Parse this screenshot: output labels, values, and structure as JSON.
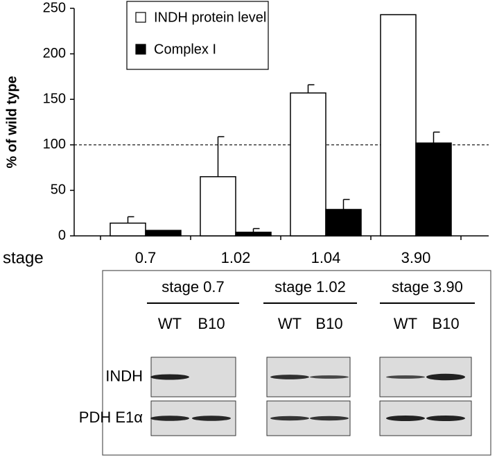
{
  "chart_data": {
    "type": "bar",
    "y_label": "% of wild type",
    "x_label": "stage",
    "categories": [
      "0.7",
      "1.02",
      "1.04",
      "3.90"
    ],
    "series": [
      {
        "name": "INDH protein level",
        "color": "#ffffff",
        "values": [
          14,
          65,
          157,
          243
        ],
        "errors": [
          7,
          44,
          9,
          null
        ]
      },
      {
        "name": "Complex I",
        "color": "#000000",
        "values": [
          6,
          4,
          29,
          102
        ],
        "errors": [
          null,
          4,
          11,
          12
        ]
      }
    ],
    "reference_line": 100,
    "ylim": [
      0,
      250
    ],
    "yticks": [
      0,
      50,
      100,
      150,
      200,
      250
    ]
  },
  "blot": {
    "groups": [
      {
        "label": "stage 0.7",
        "lanes": [
          "WT",
          "B10"
        ]
      },
      {
        "label": "stage 1.02",
        "lanes": [
          "WT",
          "B10"
        ]
      },
      {
        "label": "stage 3.90",
        "lanes": [
          "WT",
          "B10"
        ]
      }
    ],
    "rows": [
      "INDH",
      "PDH E1α"
    ]
  }
}
